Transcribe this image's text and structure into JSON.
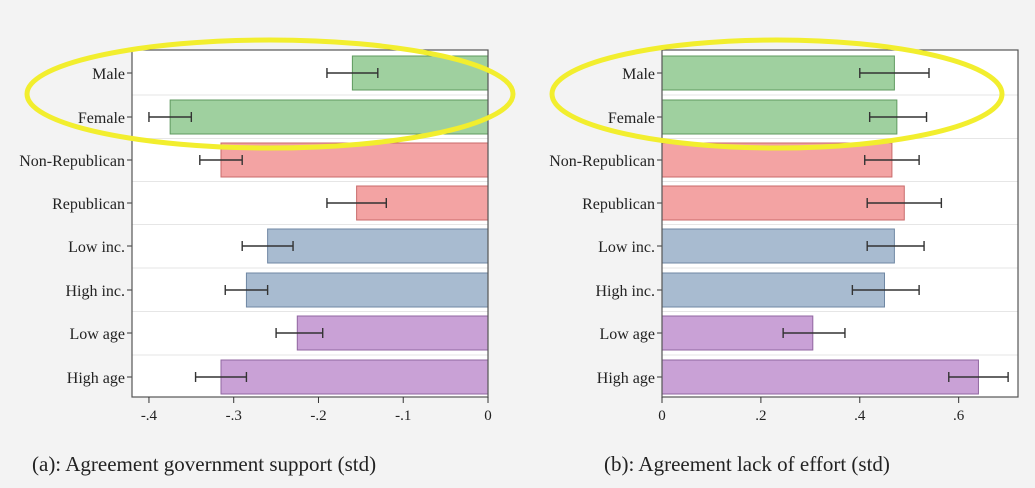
{
  "highlight_color": "#f2ee2e",
  "chart_data": [
    {
      "type": "bar",
      "orientation": "horizontal",
      "title": "(a): Agreement government support (std)",
      "categories": [
        "Male",
        "Female",
        "Non-Republican",
        "Republican",
        "Low inc.",
        "High inc.",
        "Low age",
        "High age"
      ],
      "values": [
        -0.16,
        -0.375,
        -0.315,
        -0.155,
        -0.26,
        -0.285,
        -0.225,
        -0.315
      ],
      "error_low": [
        -0.19,
        -0.4,
        -0.34,
        -0.19,
        -0.29,
        -0.31,
        -0.25,
        -0.345
      ],
      "error_high": [
        -0.13,
        -0.35,
        -0.29,
        -0.12,
        -0.23,
        -0.26,
        -0.195,
        -0.285
      ],
      "colors": [
        "#9fd09f",
        "#9fd09f",
        "#f3a3a3",
        "#f3a3a3",
        "#a8bbd0",
        "#a8bbd0",
        "#c9a1d6",
        "#c9a1d6"
      ],
      "xlim": [
        -0.42,
        0
      ],
      "xticks": [
        -0.4,
        -0.3,
        -0.2,
        -0.1,
        0
      ],
      "xtick_labels": [
        "-.4",
        "-.3",
        "-.2",
        "-.1",
        "0"
      ],
      "highlighted_categories": [
        "Male",
        "Female"
      ]
    },
    {
      "type": "bar",
      "orientation": "horizontal",
      "title": "(b): Agreement lack of effort (std)",
      "categories": [
        "Male",
        "Female",
        "Non-Republican",
        "Republican",
        "Low inc.",
        "High inc.",
        "Low age",
        "High age"
      ],
      "values": [
        0.47,
        0.475,
        0.465,
        0.49,
        0.47,
        0.45,
        0.305,
        0.64
      ],
      "error_low": [
        0.4,
        0.42,
        0.41,
        0.415,
        0.415,
        0.385,
        0.245,
        0.58
      ],
      "error_high": [
        0.54,
        0.535,
        0.52,
        0.565,
        0.53,
        0.52,
        0.37,
        0.7
      ],
      "colors": [
        "#9fd09f",
        "#9fd09f",
        "#f3a3a3",
        "#f3a3a3",
        "#a8bbd0",
        "#a8bbd0",
        "#c9a1d6",
        "#c9a1d6"
      ],
      "xlim": [
        0,
        0.72
      ],
      "xticks": [
        0,
        0.2,
        0.4,
        0.6
      ],
      "xtick_labels": [
        "0",
        ".2",
        ".4",
        ".6"
      ],
      "highlighted_categories": [
        "Male",
        "Female"
      ]
    }
  ]
}
